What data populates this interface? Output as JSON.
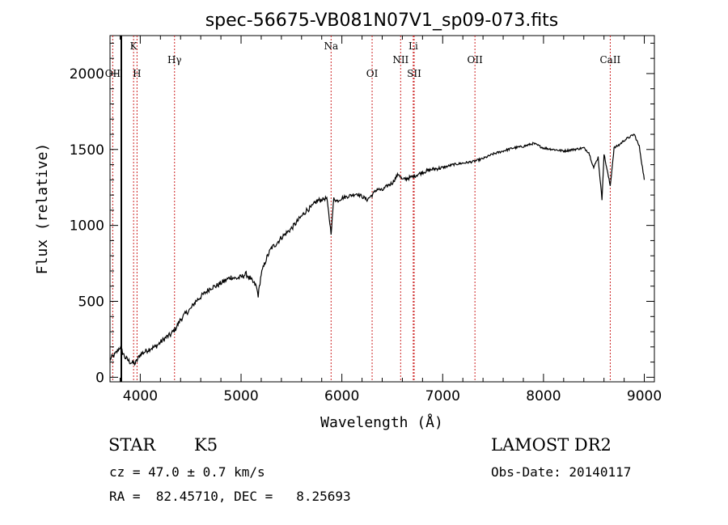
{
  "chart_data": {
    "type": "line",
    "title": "spec-56675-VB081N07V1_sp09-073.fits",
    "xlabel": "Wavelength (Å)",
    "ylabel": "Flux (relative)",
    "xlim": [
      3700,
      9100
    ],
    "ylim": [
      -30,
      2250
    ],
    "xticks": [
      4000,
      5000,
      6000,
      7000,
      8000,
      9000
    ],
    "yticks": [
      0,
      500,
      1000,
      1500,
      2000
    ],
    "grid": false,
    "line_color": "#000000",
    "marker_color": "#cc2222",
    "series": [
      {
        "x": [
          3700,
          3750,
          3800,
          3850,
          3900,
          3950,
          4000,
          4050,
          4100,
          4150,
          4200,
          4250,
          4300,
          4350,
          4400,
          4450,
          4500,
          4550,
          4600,
          4650,
          4700,
          4750,
          4800,
          4850,
          4900,
          4950,
          5000,
          5050,
          5100,
          5150,
          5170,
          5200,
          5250,
          5300,
          5350,
          5400,
          5450,
          5500,
          5550,
          5600,
          5650,
          5700,
          5750,
          5800,
          5850,
          5893,
          5920,
          5950,
          6000,
          6050,
          6100,
          6150,
          6200,
          6250,
          6300,
          6350,
          6400,
          6450,
          6500,
          6563,
          6600,
          6700,
          6800,
          6900,
          7000,
          7100,
          7200,
          7300,
          7400,
          7500,
          7600,
          7700,
          7800,
          7900,
          8000,
          8100,
          8200,
          8300,
          8400,
          8450,
          8498,
          8542,
          8580,
          8600,
          8662,
          8700,
          8750,
          8800,
          8850,
          8900,
          8950,
          9000
        ],
        "y": [
          120,
          150,
          200,
          130,
          100,
          90,
          150,
          170,
          190,
          200,
          230,
          260,
          280,
          320,
          380,
          420,
          450,
          500,
          530,
          560,
          590,
          600,
          620,
          640,
          660,
          650,
          660,
          680,
          640,
          600,
          540,
          680,
          780,
          850,
          880,
          920,
          950,
          980,
          1020,
          1060,
          1100,
          1120,
          1160,
          1170,
          1180,
          950,
          1180,
          1160,
          1180,
          1190,
          1200,
          1210,
          1190,
          1170,
          1200,
          1240,
          1230,
          1260,
          1280,
          1340,
          1300,
          1320,
          1350,
          1370,
          1380,
          1400,
          1410,
          1420,
          1440,
          1470,
          1490,
          1510,
          1520,
          1540,
          1510,
          1500,
          1490,
          1500,
          1510,
          1480,
          1380,
          1450,
          1170,
          1470,
          1260,
          1510,
          1530,
          1560,
          1580,
          1600,
          1520,
          1300
        ]
      }
    ],
    "lines": [
      {
        "label": "OII",
        "wavelength": 3727,
        "row": 2
      },
      {
        "label": "K",
        "wavelength": 3934,
        "row": 1
      },
      {
        "label": "H",
        "wavelength": 3968,
        "row": 2
      },
      {
        "label": "Hγ",
        "wavelength": 4340,
        "row": 1.5
      },
      {
        "label": "Na",
        "wavelength": 5893,
        "row": 1
      },
      {
        "label": "OI",
        "wavelength": 6300,
        "row": 2
      },
      {
        "label": "NII",
        "wavelength": 6583,
        "row": 1.5
      },
      {
        "label": "Li",
        "wavelength": 6708,
        "row": 1
      },
      {
        "label": "SII",
        "wavelength": 6717,
        "row": 2
      },
      {
        "label": "OII",
        "wavelength": 7320,
        "row": 1.5
      },
      {
        "label": "CaII",
        "wavelength": 8662,
        "row": 1.5
      }
    ]
  },
  "info": {
    "object_class": "STAR",
    "subclass": "K5",
    "survey": "LAMOST DR2",
    "redshift": "cz = 47.0 ± 0.7 km/s",
    "obs_date": "Obs-Date: 20140117",
    "coords": "RA =  82.45710, DEC =   8.25693"
  }
}
